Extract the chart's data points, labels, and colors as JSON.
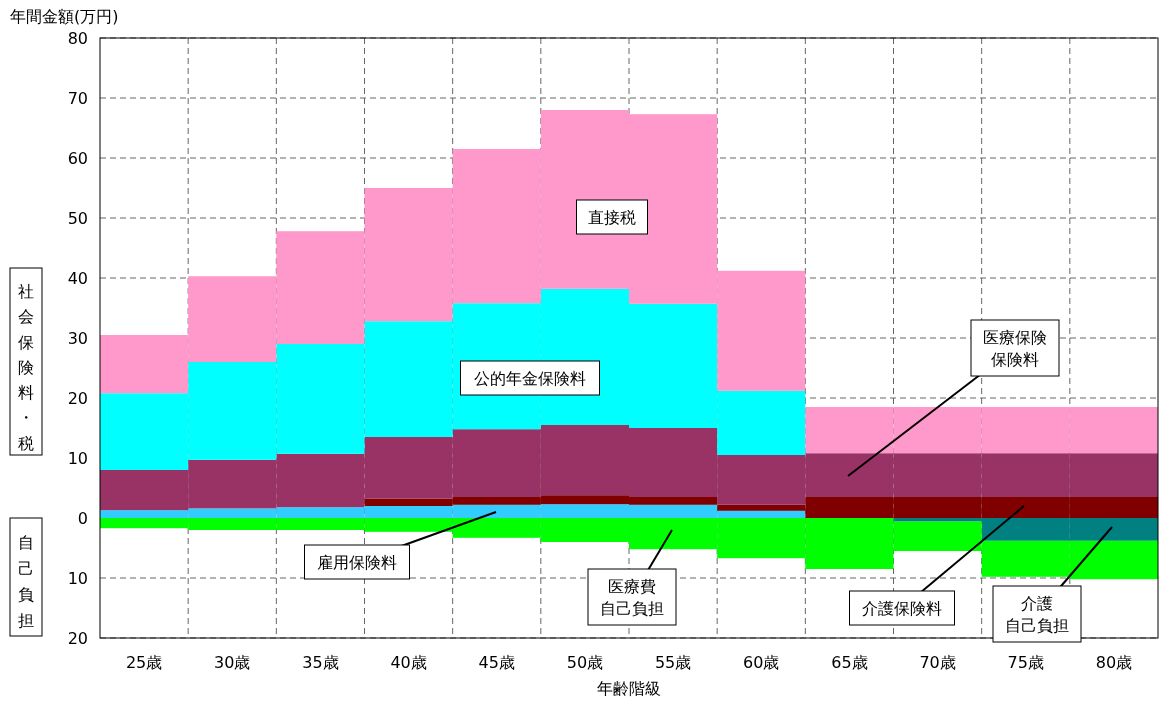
{
  "chart_data": {
    "type": "bar",
    "stacked": true,
    "ylabel": "年間金額(万円)",
    "xlabel": "年齢階級",
    "categories": [
      "25歳",
      "30歳",
      "35歳",
      "40歳",
      "45歳",
      "50歳",
      "55歳",
      "60歳",
      "65歳",
      "70歳",
      "75歳",
      "80歳"
    ],
    "series": [
      {
        "color": "#33ccff",
        "values": [
          1.3,
          1.6,
          1.8,
          2.0,
          2.2,
          2.3,
          2.2,
          1.2,
          0,
          0,
          0,
          0
        ]
      },
      {
        "color": "#800000",
        "values": [
          0,
          0,
          0,
          1.2,
          1.3,
          1.5,
          1.3,
          1.0,
          3.5,
          3.5,
          3.5,
          3.5
        ]
      },
      {
        "color": "#993366",
        "values": [
          6.7,
          8.1,
          8.9,
          10.3,
          11.3,
          11.7,
          11.5,
          8.3,
          7.3,
          7.3,
          7.3,
          7.3
        ]
      },
      {
        "color": "#00ffff",
        "values": [
          12.8,
          16.3,
          18.3,
          19.3,
          21.0,
          22.7,
          20.7,
          10.7,
          0,
          0,
          0,
          0
        ]
      },
      {
        "color": "#ff99cc",
        "values": [
          9.7,
          14.3,
          18.8,
          22.2,
          25.7,
          29.8,
          31.6,
          20.0,
          7.7,
          7.7,
          7.7,
          7.7
        ]
      },
      {
        "color": "#008080",
        "values": [
          0,
          0,
          0,
          0,
          0,
          0,
          0,
          0,
          0,
          -0.6,
          -3.8,
          -3.8
        ]
      },
      {
        "color": "#00ff00",
        "values": [
          -1.7,
          -2.0,
          -2.0,
          -2.3,
          -3.3,
          -4.0,
          -5.2,
          -6.7,
          -8.5,
          -4.9,
          -6.0,
          -6.4
        ]
      }
    ],
    "ylim": [
      -20,
      80
    ],
    "yticks": [
      {
        "value": -20,
        "label": "20"
      },
      {
        "value": -10,
        "label": "10"
      },
      0,
      10,
      20,
      30,
      40,
      50,
      60,
      70,
      80
    ],
    "grid": true,
    "annotations": [
      "社会保険料・税",
      "自己負担",
      "直接税",
      "公的年金保険料",
      "医療保険保険料",
      "雇用保険料",
      "医療費自己負担",
      "介護保険料",
      "介護自己負担"
    ]
  }
}
